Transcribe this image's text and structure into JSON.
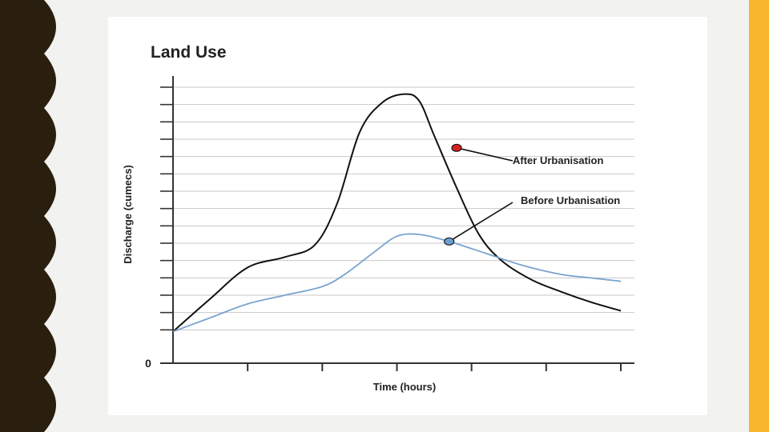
{
  "theme": {
    "page_bg": "#f2f2f0",
    "left_band_color": "#2a1f0f",
    "right_band_color": "#f6b72e",
    "card_bg": "#ffffff",
    "grid_color": "#c8c8c8",
    "axis_color": "#333333",
    "after_color": "#111111",
    "before_color": "#7aa3cf",
    "after_marker_color": "#d91e1e",
    "before_marker_color": "#6e9fd2"
  },
  "chart_data": {
    "type": "line",
    "title": "Land Use",
    "xlabel": "Time (hours)",
    "ylabel": "Discharge (cumecs)",
    "y_tick_labels": [
      "0"
    ],
    "xlim": [
      0,
      6
    ],
    "ylim": [
      0,
      15
    ],
    "x_tick_count": 6,
    "y_gridlines": 15,
    "grid": true,
    "series": [
      {
        "name": "After Urbanisation",
        "color": "#111111",
        "x": [
          0,
          0.5,
          1.0,
          1.5,
          1.9,
          2.2,
          2.5,
          2.8,
          3.1,
          3.3,
          3.5,
          3.8,
          4.1,
          4.4,
          4.8,
          5.2,
          5.6,
          6.0
        ],
        "y": [
          0.9,
          2.8,
          4.6,
          5.2,
          5.9,
          8.3,
          12.4,
          14.1,
          14.6,
          14.2,
          12.2,
          9.2,
          6.5,
          5.0,
          3.9,
          3.2,
          2.6,
          2.1
        ]
      },
      {
        "name": "Before Urbanisation",
        "color": "#7aa3cf",
        "x": [
          0,
          0.5,
          1.0,
          1.5,
          2.0,
          2.3,
          2.7,
          3.0,
          3.3,
          3.7,
          4.2,
          4.7,
          5.2,
          5.6,
          6.0
        ],
        "y": [
          0.9,
          1.7,
          2.5,
          3.0,
          3.5,
          4.2,
          5.5,
          6.4,
          6.5,
          6.1,
          5.4,
          4.7,
          4.2,
          4.0,
          3.8
        ]
      }
    ],
    "annotations": [
      {
        "text": "After Urbanisation",
        "series": 0,
        "x": 3.8,
        "y": 11.5
      },
      {
        "text": "Before Urbanisation",
        "series": 1,
        "x": 3.7,
        "y": 6.1
      }
    ]
  }
}
